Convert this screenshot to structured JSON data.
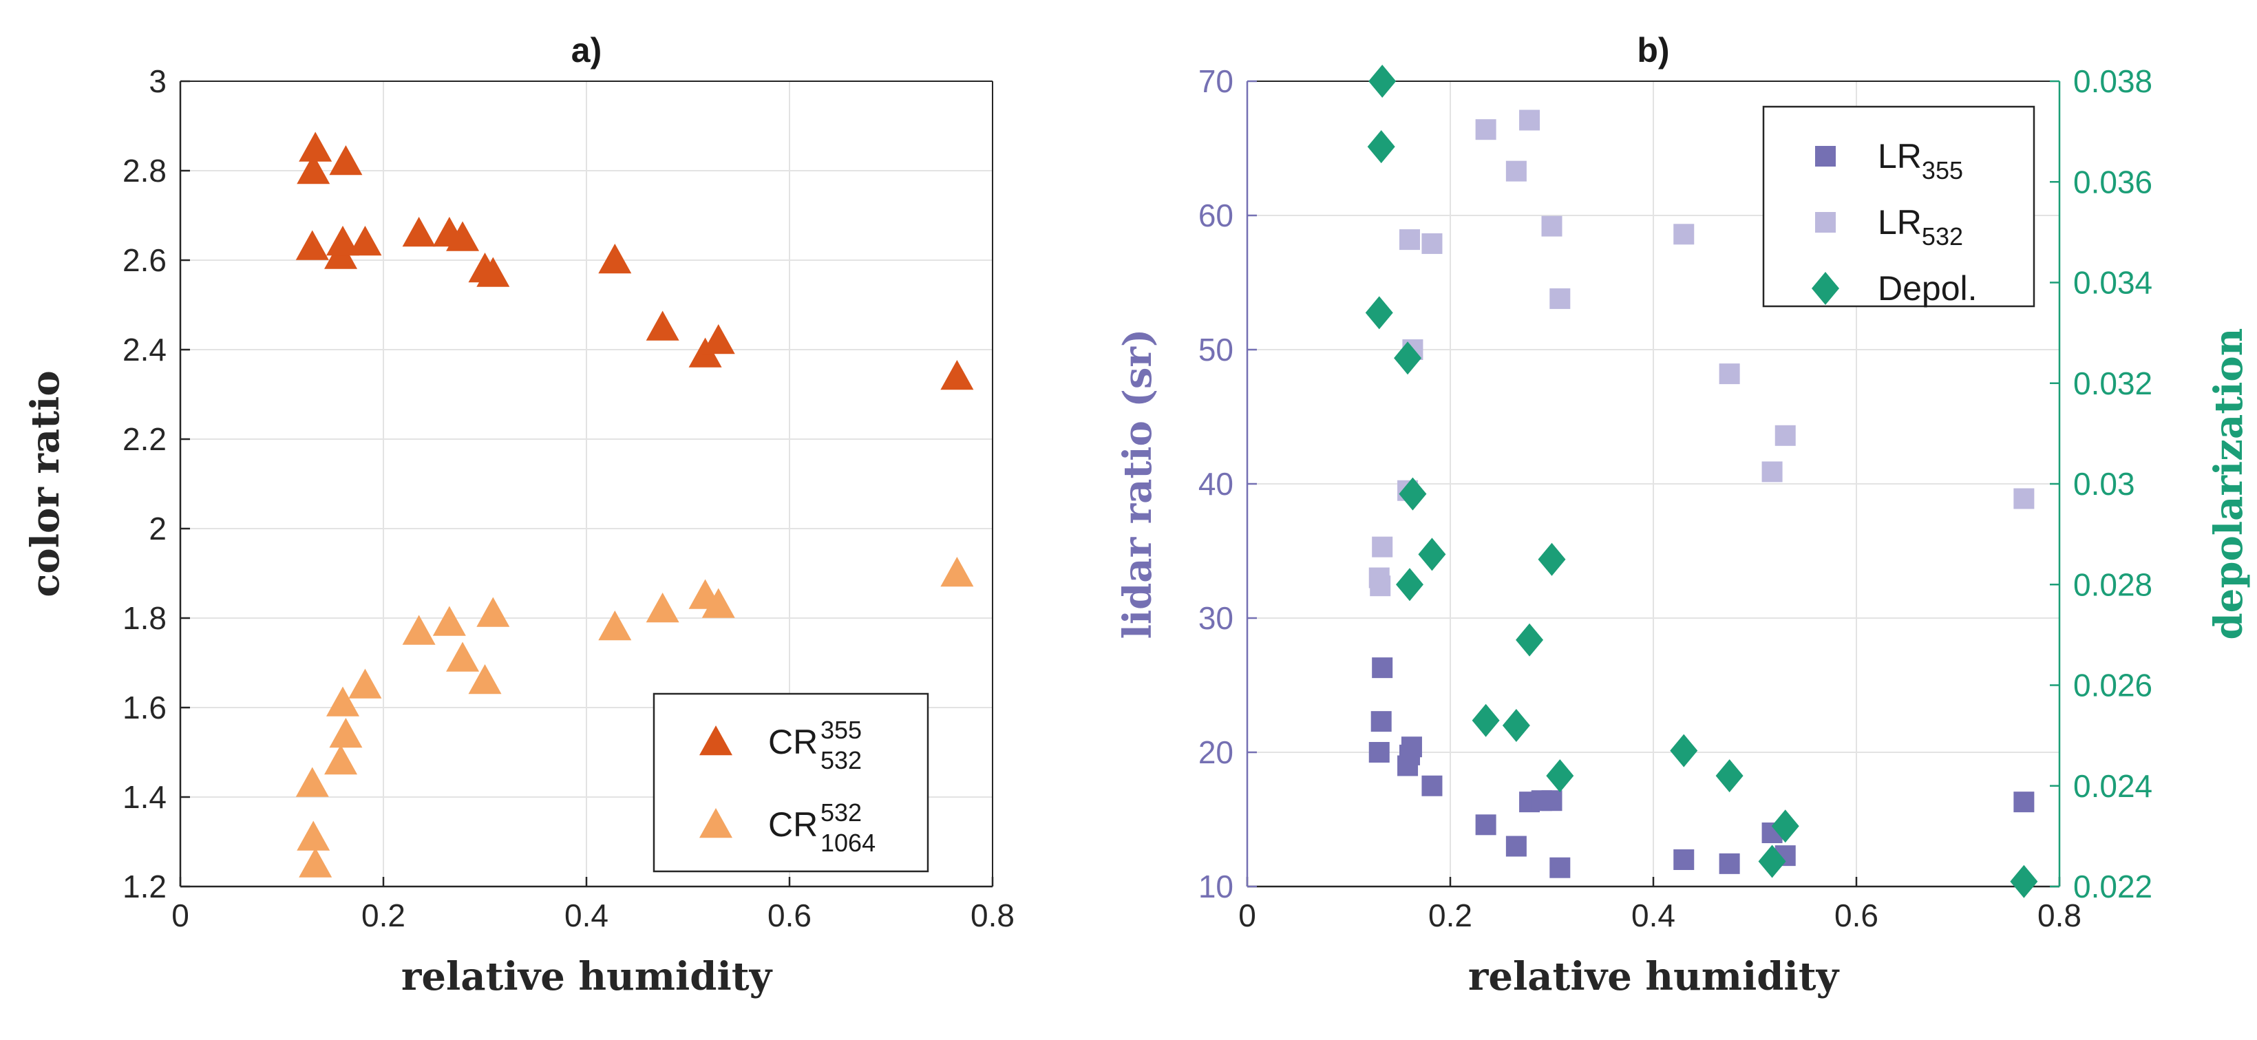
{
  "chart_data": [
    {
      "type": "scatter",
      "title": "a)",
      "xlabel": "relative humidity",
      "ylabel": "color ratio",
      "xlim": [
        0,
        0.8
      ],
      "ylim": [
        1.2,
        3.0
      ],
      "xticks": [
        "0",
        "0.2",
        "0.4",
        "0.6",
        "0.8"
      ],
      "yticks": [
        "1.2",
        "1.4",
        "1.6",
        "1.8",
        "2",
        "2.2",
        "2.4",
        "2.6",
        "2.8",
        "3"
      ],
      "grid": true,
      "legend_position": "bottom-right",
      "series": [
        {
          "name": "CR",
          "sup": "355",
          "sub": "532",
          "marker": "triangle",
          "color": "#d95319",
          "x": [
            0.13,
            0.131,
            0.133,
            0.158,
            0.16,
            0.163,
            0.182,
            0.235,
            0.265,
            0.278,
            0.3,
            0.308,
            0.428,
            0.475,
            0.517,
            0.53,
            0.765
          ],
          "y": [
            2.63,
            2.8,
            2.85,
            2.61,
            2.64,
            2.82,
            2.64,
            2.66,
            2.66,
            2.65,
            2.58,
            2.57,
            2.6,
            2.45,
            2.39,
            2.42,
            2.34
          ]
        },
        {
          "name": "CR",
          "sup": "532",
          "sub": "1064",
          "marker": "triangle",
          "color": "#f4a460",
          "x": [
            0.13,
            0.131,
            0.133,
            0.158,
            0.16,
            0.163,
            0.182,
            0.235,
            0.265,
            0.278,
            0.3,
            0.308,
            0.428,
            0.475,
            0.517,
            0.53,
            0.765
          ],
          "y": [
            1.43,
            1.31,
            1.25,
            1.48,
            1.61,
            1.54,
            1.65,
            1.77,
            1.79,
            1.71,
            1.66,
            1.81,
            1.78,
            1.82,
            1.85,
            1.83,
            1.9
          ]
        }
      ]
    },
    {
      "type": "scatter",
      "title": "b)",
      "xlabel": "relative humidity",
      "ylabel": "lidar ratio (sr)",
      "y2label": "depolarization",
      "xlim": [
        0,
        0.8
      ],
      "ylim": [
        10,
        70
      ],
      "y2lim": [
        0.022,
        0.038
      ],
      "xticks": [
        "0",
        "0.2",
        "0.4",
        "0.6",
        "0.8"
      ],
      "yticks": [
        "10",
        "20",
        "30",
        "40",
        "50",
        "60",
        "70"
      ],
      "y2ticks": [
        "0.022",
        "0.024",
        "0.026",
        "0.028",
        "0.03",
        "0.032",
        "0.034",
        "0.036",
        "0.038"
      ],
      "grid": true,
      "legend_position": "top-right",
      "series": [
        {
          "name": "LR",
          "sub": "355",
          "marker": "square",
          "axis": "left",
          "color": "#7570b3",
          "x": [
            0.13,
            0.132,
            0.133,
            0.158,
            0.16,
            0.162,
            0.182,
            0.235,
            0.265,
            0.278,
            0.29,
            0.3,
            0.308,
            0.43,
            0.475,
            0.517,
            0.53,
            0.765
          ],
          "y": [
            20.0,
            22.3,
            26.3,
            19.0,
            19.8,
            20.4,
            17.5,
            14.6,
            13.0,
            16.3,
            16.4,
            16.4,
            11.4,
            12.0,
            11.7,
            14.0,
            12.3,
            16.3
          ]
        },
        {
          "name": "LR",
          "sub": "532",
          "marker": "square",
          "axis": "left",
          "color": "#bcb8dd",
          "x": [
            0.13,
            0.131,
            0.133,
            0.158,
            0.16,
            0.163,
            0.182,
            0.235,
            0.265,
            0.278,
            0.3,
            0.308,
            0.43,
            0.475,
            0.517,
            0.53,
            0.765
          ],
          "y": [
            33.0,
            32.4,
            35.3,
            39.5,
            58.2,
            50.0,
            57.9,
            66.4,
            63.3,
            67.1,
            59.2,
            53.8,
            58.6,
            48.2,
            40.9,
            43.6,
            38.9
          ]
        },
        {
          "name": "Depol.",
          "marker": "diamond",
          "axis": "right",
          "color": "#1b9e77",
          "x": [
            0.13,
            0.132,
            0.133,
            0.158,
            0.16,
            0.163,
            0.182,
            0.235,
            0.265,
            0.278,
            0.3,
            0.308,
            0.43,
            0.475,
            0.517,
            0.53,
            0.765
          ],
          "y": [
            0.0334,
            0.0367,
            0.038,
            0.0325,
            0.028,
            0.0298,
            0.0286,
            0.0253,
            0.0252,
            0.0269,
            0.0285,
            0.0242,
            0.0247,
            0.0242,
            0.0225,
            0.0232,
            0.0221
          ]
        }
      ]
    }
  ]
}
